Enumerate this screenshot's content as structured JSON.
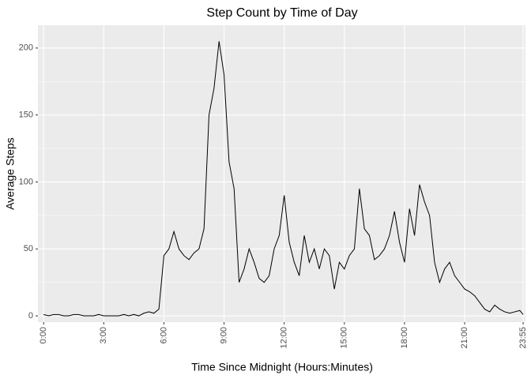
{
  "chart_data": {
    "type": "line",
    "title": "Step Count by Time of Day",
    "x_label": "Time Since Midnight (Hours:Minutes)",
    "y_label": "Average Steps",
    "x": [
      0,
      15,
      30,
      45,
      60,
      75,
      90,
      105,
      120,
      135,
      150,
      165,
      180,
      195,
      210,
      225,
      240,
      255,
      270,
      285,
      300,
      315,
      330,
      345,
      360,
      375,
      390,
      405,
      420,
      435,
      450,
      465,
      480,
      495,
      510,
      525,
      540,
      555,
      570,
      585,
      600,
      615,
      630,
      645,
      660,
      675,
      690,
      705,
      720,
      735,
      750,
      765,
      780,
      795,
      810,
      825,
      840,
      855,
      870,
      885,
      900,
      915,
      930,
      945,
      960,
      975,
      990,
      1005,
      1020,
      1035,
      1050,
      1065,
      1080,
      1095,
      1110,
      1125,
      1140,
      1155,
      1170,
      1185,
      1200,
      1215,
      1230,
      1245,
      1260,
      1275,
      1290,
      1305,
      1320,
      1335,
      1350,
      1365,
      1380,
      1395,
      1410,
      1425,
      1435
    ],
    "series": [
      {
        "name": "Average Steps",
        "color": "#000000",
        "values": [
          1,
          0,
          1,
          1,
          0,
          0,
          1,
          1,
          0,
          0,
          0,
          1,
          0,
          0,
          0,
          0,
          1,
          0,
          1,
          0,
          2,
          3,
          2,
          5,
          45,
          50,
          63,
          50,
          45,
          42,
          47,
          50,
          65,
          150,
          170,
          205,
          180,
          115,
          95,
          25,
          35,
          50,
          40,
          28,
          25,
          30,
          50,
          60,
          90,
          55,
          40,
          30,
          60,
          40,
          50,
          35,
          50,
          45,
          20,
          40,
          35,
          45,
          50,
          95,
          65,
          60,
          42,
          45,
          50,
          60,
          78,
          55,
          40,
          80,
          60,
          98,
          85,
          75,
          40,
          25,
          35,
          40,
          30,
          25,
          20,
          18,
          15,
          10,
          5,
          3,
          8,
          5,
          3,
          2,
          3,
          4,
          1
        ]
      }
    ],
    "xlim": [
      -17,
      1442
    ],
    "ylim": [
      -4.7,
      217
    ],
    "xticks": [
      {
        "value": 0,
        "label": "0:00"
      },
      {
        "value": 180,
        "label": "3:00"
      },
      {
        "value": 360,
        "label": "6:00"
      },
      {
        "value": 540,
        "label": "9:00"
      },
      {
        "value": 720,
        "label": "12:00"
      },
      {
        "value": 900,
        "label": "15:00"
      },
      {
        "value": 1080,
        "label": "18:00"
      },
      {
        "value": 1260,
        "label": "21:00"
      },
      {
        "value": 1435,
        "label": "23:55"
      }
    ],
    "yticks": [
      0,
      50,
      100,
      150,
      200
    ],
    "grid": true
  }
}
